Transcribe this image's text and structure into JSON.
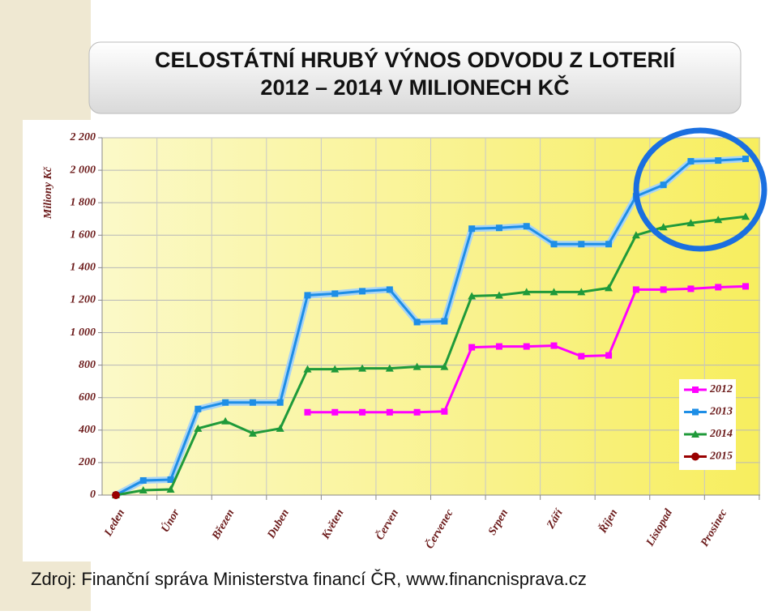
{
  "chart_data": {
    "type": "line",
    "title": "CELOSTÁTNÍ HRUBÝ VÝNOS ODVODU Z LOTERIÍ",
    "subtitle": "2012 – 2014 V MILIONECH KČ",
    "y_label": "Miliony Kč",
    "source": "Zdroj: Finanční správa Ministerstva financí ČR, www.financnisprava.cz",
    "categories": [
      "Leden",
      null,
      "Únor",
      null,
      "Březen",
      null,
      "Duben",
      null,
      "Květen",
      null,
      "Červen",
      null,
      "Červenec",
      null,
      "Srpen",
      null,
      "Září",
      null,
      "Říjen",
      null,
      "Listopad",
      null,
      "Prosinec",
      null
    ],
    "series": [
      {
        "name": "2012",
        "color": "#ff00ff",
        "marker": "square",
        "values": [
          null,
          null,
          null,
          null,
          null,
          null,
          null,
          510,
          510,
          510,
          510,
          510,
          515,
          910,
          915,
          915,
          920,
          855,
          860,
          1265,
          1265,
          1270,
          1280,
          1285
        ]
      },
      {
        "name": "2013",
        "color": "#1e8ee6",
        "marker": "square",
        "values": [
          0,
          90,
          95,
          530,
          570,
          570,
          570,
          1230,
          1240,
          1255,
          1265,
          1065,
          1070,
          1640,
          1645,
          1655,
          1545,
          1545,
          1545,
          1840,
          1910,
          2055,
          2060,
          2070
        ]
      },
      {
        "name": "2014",
        "color": "#1f9a3a",
        "marker": "triangle",
        "values": [
          0,
          30,
          35,
          410,
          455,
          380,
          410,
          775,
          775,
          780,
          780,
          790,
          790,
          1225,
          1230,
          1250,
          1250,
          1250,
          1275,
          1600,
          1650,
          1675,
          1695,
          1715
        ]
      },
      {
        "name": "2015",
        "color": "#990000",
        "marker": "circle",
        "values": [
          0,
          null,
          null,
          null,
          null,
          null,
          null,
          null,
          null,
          null,
          null,
          null,
          null,
          null,
          null,
          null,
          null,
          null,
          null,
          null,
          null,
          null,
          null,
          null
        ]
      }
    ],
    "ylim": [
      0,
      2200
    ],
    "yticks": [
      0,
      200,
      400,
      600,
      800,
      {
        "value": 1000,
        "label": "1 000"
      },
      {
        "value": 1200,
        "label": "1 200"
      },
      {
        "value": 1400,
        "label": "1 400"
      },
      {
        "value": 1600,
        "label": "1 600"
      },
      {
        "value": 1800,
        "label": "1 800"
      },
      {
        "value": 2000,
        "label": "2 000"
      },
      {
        "value": 2200,
        "label": "2 200"
      }
    ],
    "grid": true,
    "legend": "lower right"
  }
}
